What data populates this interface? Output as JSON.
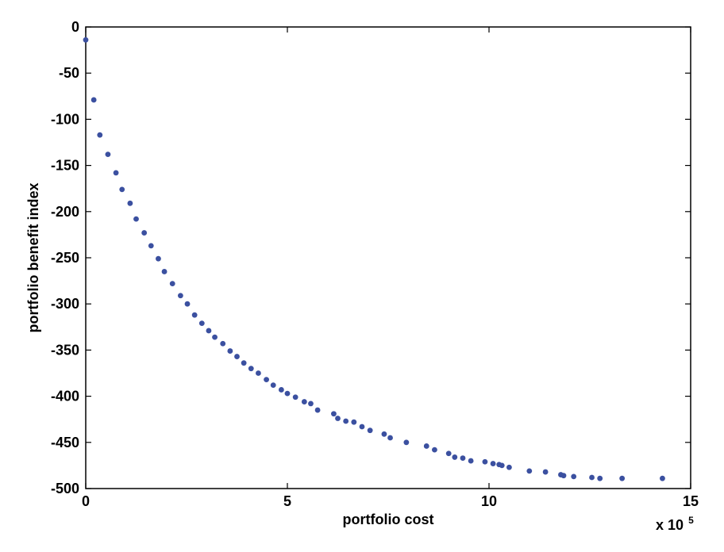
{
  "chart_data": {
    "type": "scatter",
    "title": "",
    "xlabel": "portfolio cost",
    "ylabel": "portfolio benefit index",
    "x_multiplier_label": "x 10",
    "x_multiplier_exponent": "5",
    "xlim": [
      0,
      15
    ],
    "ylim": [
      -500,
      0
    ],
    "xticks": [
      0,
      5,
      10,
      15
    ],
    "xtick_labels": [
      "0",
      "5",
      "10",
      "15"
    ],
    "yticks": [
      0,
      -50,
      -100,
      -150,
      -200,
      -250,
      -300,
      -350,
      -400,
      -450,
      -500
    ],
    "ytick_labels": [
      "0",
      "-50",
      "-100",
      "-150",
      "-200",
      "-250",
      "-300",
      "-350",
      "-400",
      "-450",
      "-500"
    ],
    "grid": false,
    "marker_color": "#3b50a0",
    "series": [
      {
        "points": [
          [
            0.0,
            -14
          ],
          [
            0.2,
            -79
          ],
          [
            0.35,
            -117
          ],
          [
            0.55,
            -138
          ],
          [
            0.75,
            -158
          ],
          [
            0.9,
            -176
          ],
          [
            1.1,
            -191
          ],
          [
            1.25,
            -208
          ],
          [
            1.45,
            -223
          ],
          [
            1.62,
            -237
          ],
          [
            1.8,
            -251
          ],
          [
            1.95,
            -265
          ],
          [
            2.15,
            -278
          ],
          [
            2.35,
            -291
          ],
          [
            2.52,
            -300
          ],
          [
            2.7,
            -312
          ],
          [
            2.88,
            -321
          ],
          [
            3.05,
            -329
          ],
          [
            3.2,
            -336
          ],
          [
            3.4,
            -343
          ],
          [
            3.58,
            -351
          ],
          [
            3.75,
            -357
          ],
          [
            3.92,
            -364
          ],
          [
            4.1,
            -370
          ],
          [
            4.28,
            -375
          ],
          [
            4.48,
            -382
          ],
          [
            4.65,
            -388
          ],
          [
            4.85,
            -393
          ],
          [
            5.0,
            -397
          ],
          [
            5.2,
            -401
          ],
          [
            5.42,
            -406
          ],
          [
            5.58,
            -408
          ],
          [
            5.75,
            -415
          ],
          [
            6.15,
            -419
          ],
          [
            6.25,
            -424
          ],
          [
            6.45,
            -427
          ],
          [
            6.65,
            -428
          ],
          [
            6.85,
            -433
          ],
          [
            7.05,
            -437
          ],
          [
            7.4,
            -441
          ],
          [
            7.55,
            -445
          ],
          [
            7.95,
            -450
          ],
          [
            8.45,
            -454
          ],
          [
            8.65,
            -458
          ],
          [
            9.0,
            -462
          ],
          [
            9.15,
            -466
          ],
          [
            9.35,
            -467
          ],
          [
            9.55,
            -470
          ],
          [
            9.9,
            -471
          ],
          [
            10.1,
            -473
          ],
          [
            10.25,
            -474
          ],
          [
            10.32,
            -475
          ],
          [
            10.5,
            -477
          ],
          [
            11.0,
            -481
          ],
          [
            11.4,
            -482
          ],
          [
            11.78,
            -485
          ],
          [
            11.85,
            -486
          ],
          [
            12.1,
            -487
          ],
          [
            12.55,
            -488
          ],
          [
            12.75,
            -489
          ],
          [
            13.3,
            -489
          ],
          [
            14.3,
            -489
          ]
        ]
      }
    ]
  }
}
